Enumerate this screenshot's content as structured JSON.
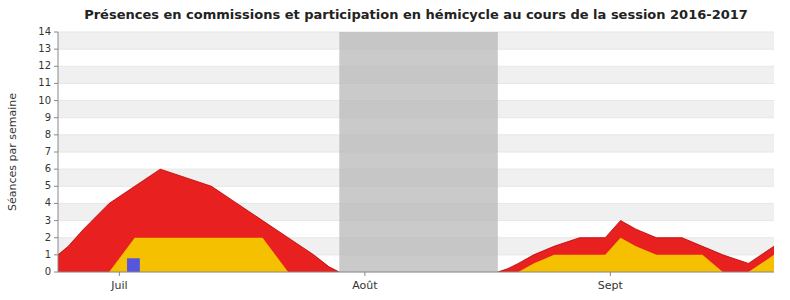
{
  "chart_data": {
    "type": "area",
    "title": "Présences en commissions et participation en hémicycle au cours de la session 2016-2017",
    "y_label": "Séances par semaine",
    "xlim": [
      0,
      14
    ],
    "xticks": [
      {
        "value": 1.2,
        "label": "Juil"
      },
      {
        "value": 6.0,
        "label": "Août"
      },
      {
        "value": 10.8,
        "label": "Sept"
      }
    ],
    "ylim": [
      0,
      14
    ],
    "yticks": [
      0,
      1,
      2,
      3,
      4,
      5,
      6,
      7,
      8,
      9,
      10,
      11,
      12,
      13,
      14
    ],
    "grid": true,
    "series": [
      {
        "color": "#e82020",
        "x": [
          0.0,
          0.2,
          0.5,
          1.0,
          1.5,
          2.0,
          2.5,
          3.0,
          3.5,
          4.0,
          4.5,
          5.0,
          5.3,
          5.5
        ],
        "values": [
          1.0,
          1.5,
          2.5,
          4.0,
          5.0,
          6.0,
          5.5,
          5.0,
          4.0,
          3.0,
          2.0,
          1.0,
          0.3,
          0.0
        ]
      },
      {
        "color": "#f5c000",
        "x": [
          0.0,
          0.2,
          0.5,
          1.0,
          1.5,
          2.0,
          2.5,
          3.0,
          3.5,
          4.0,
          4.5,
          5.0,
          5.3,
          5.5
        ],
        "values": [
          0.0,
          0.0,
          0.0,
          0.0,
          2.0,
          2.0,
          2.0,
          2.0,
          2.0,
          2.0,
          0.0,
          0.0,
          0.0,
          0.0
        ]
      },
      {
        "color": "#e82020",
        "x": [
          8.6,
          8.8,
          9.0,
          9.3,
          9.7,
          10.2,
          10.7,
          11.0,
          11.3,
          11.7,
          12.2,
          12.6,
          13.0,
          13.5,
          14.0
        ],
        "values": [
          0.0,
          0.2,
          0.5,
          1.0,
          1.5,
          2.0,
          2.0,
          3.0,
          2.5,
          2.0,
          2.0,
          1.5,
          1.0,
          0.5,
          1.5
        ]
      },
      {
        "color": "#f5c000",
        "x": [
          8.6,
          8.8,
          9.0,
          9.3,
          9.7,
          10.2,
          10.7,
          11.0,
          11.3,
          11.7,
          12.2,
          12.6,
          13.0,
          13.5,
          14.0
        ],
        "values": [
          0.0,
          0.0,
          0.0,
          0.5,
          1.0,
          1.0,
          1.0,
          2.0,
          1.5,
          1.0,
          1.0,
          1.0,
          0.0,
          0.0,
          1.0
        ]
      }
    ],
    "bars": [
      {
        "x": 1.35,
        "width": 0.25,
        "value": 0.8,
        "color": "#5555dd"
      }
    ],
    "spans": [
      {
        "start": 5.5,
        "end": 8.6,
        "color": "#b8b8b8"
      }
    ]
  }
}
